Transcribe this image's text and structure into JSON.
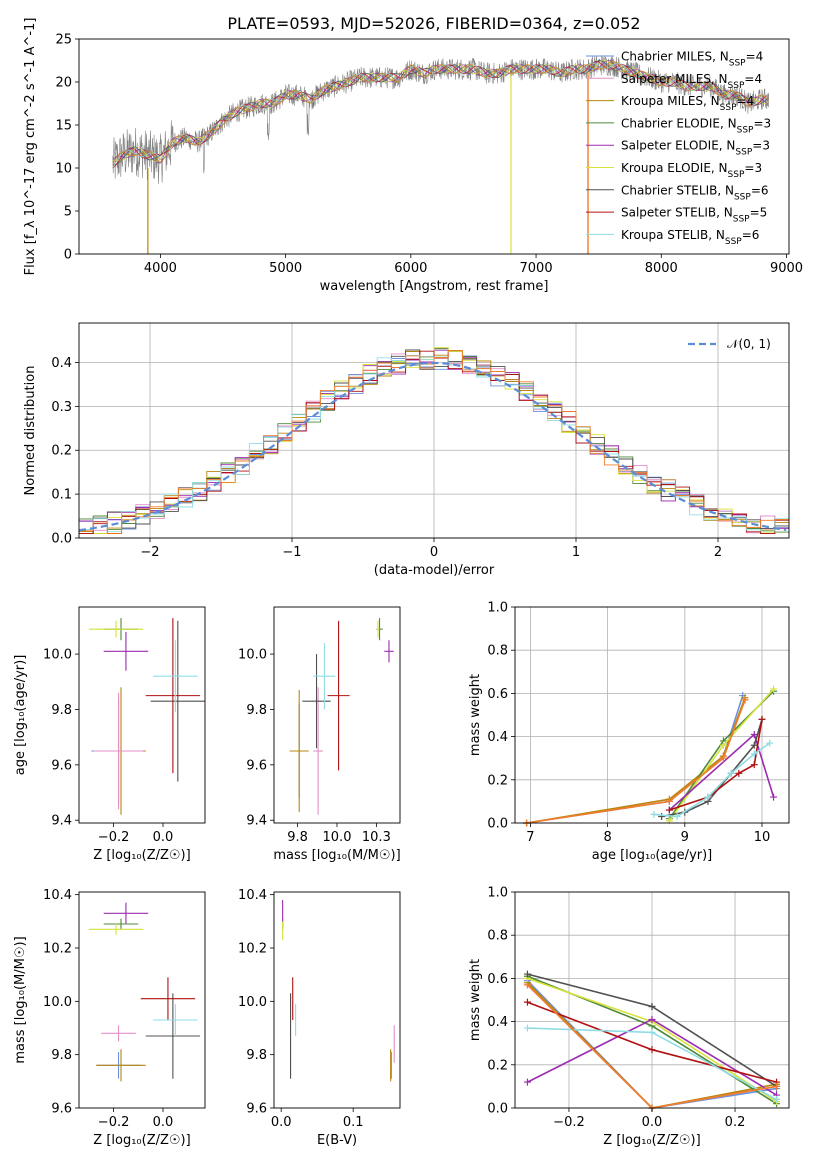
{
  "title": "PLATE=0593, MJD=52026, FIBERID=0364, z=0.052",
  "colors": {
    "Chabrier MILES": "#6a92dd",
    "Salpeter MILES": "#e58fc7",
    "Kroupa MILES": "#b8860b",
    "Chabrier ELODIE": "#4f8a3a",
    "Salpeter ELODIE": "#9b2cb1",
    "Kroupa ELODIE": "#d8e23a",
    "Chabrier STELIB": "#505050",
    "Salpeter STELIB": "#b01010",
    "Kroupa STELIB": "#8fdde3",
    "normal": "#5b8cd6",
    "orange": "#ef7d2d",
    "spectrum": "#808080"
  },
  "panels": {
    "spectrum": {
      "type": "line",
      "xlabel": "wavelength [Angstrom, rest frame]",
      "ylabel": "Flux [f_λ 10^-17 erg cm^-2 s^-1 A^-1]",
      "xlim": [
        3350,
        9020
      ],
      "ylim": [
        0,
        25
      ],
      "xticks": [
        4000,
        5000,
        6000,
        7000,
        8000,
        9000
      ],
      "yticks": [
        0,
        5,
        10,
        15,
        20,
        25
      ],
      "legend": [
        {
          "label": "Chabrier MILES, N",
          "sub": "SSP",
          "suffix": "=4",
          "series": "Chabrier MILES"
        },
        {
          "label": "Salpeter MILES, N",
          "sub": "SSP",
          "suffix": "=4",
          "series": "Salpeter MILES"
        },
        {
          "label": "Kroupa MILES, N",
          "sub": "SSP",
          "suffix": "=4",
          "series": "Kroupa MILES"
        },
        {
          "label": "Chabrier ELODIE, N",
          "sub": "SSP",
          "suffix": "=3",
          "series": "Chabrier ELODIE"
        },
        {
          "label": "Salpeter ELODIE, N",
          "sub": "SSP",
          "suffix": "=3",
          "series": "Salpeter ELODIE"
        },
        {
          "label": "Kroupa ELODIE, N",
          "sub": "SSP",
          "suffix": "=3",
          "series": "Kroupa ELODIE"
        },
        {
          "label": "Chabrier STELIB, N",
          "sub": "SSP",
          "suffix": "=6",
          "series": "Chabrier STELIB"
        },
        {
          "label": "Salpeter STELIB, N",
          "sub": "SSP",
          "suffix": "=5",
          "series": "Salpeter STELIB"
        },
        {
          "label": "Kroupa STELIB, N",
          "sub": "SSP",
          "suffix": "=6",
          "series": "Kroupa STELIB"
        }
      ],
      "continuum": [
        [
          3620,
          10.5
        ],
        [
          3700,
          11.5
        ],
        [
          3800,
          12
        ],
        [
          3900,
          11.5
        ],
        [
          4000,
          11
        ],
        [
          4100,
          13
        ],
        [
          4200,
          13.5
        ],
        [
          4300,
          13
        ],
        [
          4400,
          14
        ],
        [
          4500,
          15.5
        ],
        [
          4600,
          16.5
        ],
        [
          4700,
          17
        ],
        [
          4800,
          17.5
        ],
        [
          4900,
          17.5
        ],
        [
          5000,
          18.5
        ],
        [
          5100,
          18.5
        ],
        [
          5200,
          18
        ],
        [
          5300,
          19
        ],
        [
          5400,
          19.5
        ],
        [
          5500,
          20
        ],
        [
          5600,
          20.5
        ],
        [
          5700,
          20.5
        ],
        [
          5800,
          20.5
        ],
        [
          5900,
          20.5
        ],
        [
          6000,
          21.5
        ],
        [
          6100,
          21
        ],
        [
          6200,
          21.5
        ],
        [
          6300,
          21.5
        ],
        [
          6400,
          21.5
        ],
        [
          6500,
          21.5
        ],
        [
          6600,
          21
        ],
        [
          6700,
          21
        ],
        [
          6800,
          21.5
        ],
        [
          6900,
          21.5
        ],
        [
          7000,
          21.5
        ],
        [
          7100,
          21.5
        ],
        [
          7200,
          21
        ],
        [
          7300,
          21.5
        ],
        [
          7400,
          21.5
        ],
        [
          7500,
          22
        ],
        [
          7600,
          22
        ],
        [
          7700,
          21.5
        ],
        [
          7800,
          21
        ],
        [
          7900,
          20.5
        ],
        [
          8000,
          20
        ],
        [
          8100,
          20
        ],
        [
          8200,
          19.5
        ],
        [
          8300,
          19.5
        ],
        [
          8400,
          19.5
        ],
        [
          8500,
          18.5
        ],
        [
          8600,
          18.5
        ],
        [
          8700,
          17.5
        ],
        [
          8800,
          18
        ],
        [
          8860,
          18
        ]
      ]
    },
    "residuals": {
      "type": "histogram",
      "xlabel": "(data-model)/error",
      "ylabel": "Normed distribution",
      "xlim": [
        -2.5,
        2.5
      ],
      "ylim": [
        0,
        0.49
      ],
      "xticks": [
        -2,
        -1,
        0,
        1,
        2
      ],
      "yticks": [
        0.0,
        0.1,
        0.2,
        0.3,
        0.4
      ],
      "legend": "𝒩(0, 1)",
      "bin_width": 0.1
    },
    "age_vs_Z": {
      "type": "scatter",
      "xlabel": "Z [log₁₀(Z/Z☉)]",
      "ylabel": "age  [log₁₀(age/yr)]",
      "xlim": [
        -0.34,
        0.17
      ],
      "ylim": [
        9.39,
        10.17
      ],
      "xticks": [
        -0.2,
        0.0
      ],
      "yticks": [
        9.4,
        9.6,
        9.8,
        10.0
      ],
      "points": [
        {
          "series": "Chabrier MILES",
          "x": -0.18,
          "y": 9.65,
          "xerr": 0.11,
          "yerr": 0.19
        },
        {
          "series": "Kroupa MILES",
          "x": -0.17,
          "y": 9.65,
          "xerr": 0.1,
          "yerr": 0.23
        },
        {
          "series": "Salpeter MILES",
          "x": -0.18,
          "y": 9.65,
          "xerr": 0.1,
          "yerr": 0.21
        },
        {
          "series": "Chabrier ELODIE",
          "x": -0.17,
          "y": 10.09,
          "xerr": 0.07,
          "yerr": 0.04
        },
        {
          "series": "Kroupa ELODIE",
          "x": -0.19,
          "y": 10.09,
          "xerr": 0.11,
          "yerr": 0.03
        },
        {
          "series": "Salpeter ELODIE",
          "x": -0.15,
          "y": 10.01,
          "xerr": 0.09,
          "yerr": 0.07
        },
        {
          "series": "Chabrier STELIB",
          "x": 0.06,
          "y": 9.83,
          "xerr": 0.11,
          "yerr": 0.29
        },
        {
          "series": "Salpeter STELIB",
          "x": 0.04,
          "y": 9.85,
          "xerr": 0.11,
          "yerr": 0.28
        },
        {
          "series": "Kroupa STELIB",
          "x": 0.05,
          "y": 9.92,
          "xerr": 0.09,
          "yerr": 0.13
        }
      ]
    },
    "age_vs_mass": {
      "type": "scatter",
      "xlabel": "mass [log₁₀(M/M☉)]",
      "ylabel": "",
      "xlim": [
        9.6,
        10.4
      ],
      "ylim": [
        9.39,
        10.17
      ],
      "xticks": [
        9.75,
        10.0,
        10.25
      ],
      "yticks": [
        9.4,
        9.6,
        9.8,
        10.0
      ],
      "points": [
        {
          "series": "Chabrier MILES",
          "x": 9.76,
          "y": 9.65,
          "xerr": 0.06,
          "yerr": 0.17
        },
        {
          "series": "Kroupa MILES",
          "x": 9.76,
          "y": 9.65,
          "xerr": 0.06,
          "yerr": 0.22
        },
        {
          "series": "Salpeter MILES",
          "x": 9.88,
          "y": 9.65,
          "xerr": 0.03,
          "yerr": 0.23
        },
        {
          "series": "Chabrier ELODIE",
          "x": 10.27,
          "y": 10.09,
          "xerr": 0.02,
          "yerr": 0.04
        },
        {
          "series": "Kroupa ELODIE",
          "x": 10.26,
          "y": 10.09,
          "xerr": 0.01,
          "yerr": 0.03
        },
        {
          "series": "Salpeter ELODIE",
          "x": 10.33,
          "y": 10.01,
          "xerr": 0.03,
          "yerr": 0.04
        },
        {
          "series": "Chabrier STELIB",
          "x": 9.87,
          "y": 9.83,
          "xerr": 0.09,
          "yerr": 0.17
        },
        {
          "series": "Salpeter STELIB",
          "x": 10.01,
          "y": 9.85,
          "xerr": 0.07,
          "yerr": 0.27
        },
        {
          "series": "Kroupa STELIB",
          "x": 9.92,
          "y": 9.92,
          "xerr": 0.07,
          "yerr": 0.12
        }
      ]
    },
    "weight_vs_age": {
      "type": "line",
      "xlabel": "age  [log₁₀(age/yr)]",
      "ylabel": "mass weight",
      "xlim": [
        6.8,
        10.35
      ],
      "ylim": [
        0,
        1.0
      ],
      "xticks": [
        7,
        8,
        9,
        10
      ],
      "yticks": [
        0.0,
        0.2,
        0.4,
        0.6,
        0.8,
        1.0
      ],
      "series": [
        {
          "name": "Chabrier MILES",
          "x": [
            6.95,
            8.8,
            9.5,
            9.75
          ],
          "y": [
            0.0,
            0.1,
            0.31,
            0.59
          ]
        },
        {
          "name": "Salpeter MILES",
          "x": [
            6.95,
            8.8,
            9.5,
            9.78
          ],
          "y": [
            0.0,
            0.1,
            0.31,
            0.57
          ]
        },
        {
          "name": "Kroupa MILES",
          "x": [
            6.95,
            8.8,
            9.5,
            9.78
          ],
          "y": [
            0.0,
            0.11,
            0.31,
            0.58
          ]
        },
        {
          "name": "Chabrier ELODIE",
          "x": [
            8.8,
            9.5,
            10.15
          ],
          "y": [
            0.02,
            0.38,
            0.61
          ]
        },
        {
          "name": "Kroupa ELODIE",
          "x": [
            8.8,
            9.5,
            10.15
          ],
          "y": [
            0.01,
            0.36,
            0.62
          ]
        },
        {
          "name": "Salpeter ELODIE",
          "x": [
            8.8,
            9.9,
            10.15
          ],
          "y": [
            0.06,
            0.41,
            0.12
          ]
        },
        {
          "name": "Chabrier STELIB",
          "x": [
            8.7,
            9.0,
            9.3,
            9.6,
            9.9,
            10.0
          ],
          "y": [
            0.03,
            0.05,
            0.1,
            0.23,
            0.36,
            0.48
          ]
        },
        {
          "name": "Salpeter STELIB",
          "x": [
            8.8,
            9.3,
            9.7,
            9.9,
            10.0
          ],
          "y": [
            0.06,
            0.12,
            0.23,
            0.27,
            0.48
          ]
        },
        {
          "name": "Kroupa STELIB",
          "x": [
            8.6,
            8.9,
            9.3,
            9.6,
            9.9,
            10.1
          ],
          "y": [
            0.04,
            0.03,
            0.12,
            0.23,
            0.32,
            0.37
          ]
        }
      ],
      "orange_series": {
        "x": [
          6.95,
          8.8,
          9.5,
          9.78
        ],
        "y": [
          0.0,
          0.1,
          0.3,
          0.57
        ]
      }
    },
    "mass_vs_Z": {
      "type": "scatter",
      "xlabel": "Z [log₁₀(Z/Z☉)]",
      "ylabel": "mass [log₁₀(M/M☉)]",
      "xlim": [
        -0.34,
        0.17
      ],
      "ylim": [
        9.6,
        10.41
      ],
      "xticks": [
        -0.2,
        0.0
      ],
      "yticks": [
        9.6,
        9.8,
        10.0,
        10.2,
        10.4
      ],
      "points": [
        {
          "series": "Chabrier MILES",
          "x": -0.18,
          "y": 9.76,
          "xerr": 0.09,
          "yerr": 0.05
        },
        {
          "series": "Kroupa MILES",
          "x": -0.17,
          "y": 9.76,
          "xerr": 0.1,
          "yerr": 0.06
        },
        {
          "series": "Salpeter MILES",
          "x": -0.18,
          "y": 9.88,
          "xerr": 0.07,
          "yerr": 0.03
        },
        {
          "series": "Chabrier ELODIE",
          "x": -0.17,
          "y": 10.29,
          "xerr": 0.07,
          "yerr": 0.02
        },
        {
          "series": "Kroupa ELODIE",
          "x": -0.19,
          "y": 10.27,
          "xerr": 0.11,
          "yerr": 0.02
        },
        {
          "series": "Salpeter ELODIE",
          "x": -0.15,
          "y": 10.33,
          "xerr": 0.09,
          "yerr": 0.04
        },
        {
          "series": "Chabrier STELIB",
          "x": 0.04,
          "y": 9.87,
          "xerr": 0.11,
          "yerr": 0.16
        },
        {
          "series": "Salpeter STELIB",
          "x": 0.02,
          "y": 10.01,
          "xerr": 0.11,
          "yerr": 0.08
        },
        {
          "series": "Kroupa STELIB",
          "x": 0.05,
          "y": 9.93,
          "xerr": 0.09,
          "yerr": 0.06
        }
      ]
    },
    "mass_vs_ebv": {
      "type": "scatter",
      "xlabel": "E(B-V)",
      "ylabel": "",
      "xlim": [
        -0.01,
        0.165
      ],
      "ylim": [
        9.6,
        10.41
      ],
      "xticks": [
        0.0,
        0.1
      ],
      "yticks": [
        9.6,
        9.8,
        10.0,
        10.2,
        10.4
      ],
      "points": [
        {
          "series": "Chabrier MILES",
          "x": 0.153,
          "y": 9.76,
          "xerr": 0.0,
          "yerr": 0.05
        },
        {
          "series": "Kroupa MILES",
          "x": 0.152,
          "y": 9.76,
          "xerr": 0.0,
          "yerr": 0.06
        },
        {
          "series": "Salpeter MILES",
          "x": 0.157,
          "y": 9.84,
          "xerr": 0.0,
          "yerr": 0.07
        },
        {
          "series": "Chabrier ELODIE",
          "x": 0.002,
          "y": 10.29,
          "xerr": 0.0,
          "yerr": 0.02
        },
        {
          "series": "Kroupa ELODIE",
          "x": 0.002,
          "y": 10.27,
          "xerr": 0.0,
          "yerr": 0.04
        },
        {
          "series": "Salpeter ELODIE",
          "x": 0.002,
          "y": 10.34,
          "xerr": 0.0,
          "yerr": 0.04
        },
        {
          "series": "Chabrier STELIB",
          "x": 0.013,
          "y": 9.87,
          "xerr": 0.0,
          "yerr": 0.16
        },
        {
          "series": "Salpeter STELIB",
          "x": 0.016,
          "y": 10.01,
          "xerr": 0.0,
          "yerr": 0.08
        },
        {
          "series": "Kroupa STELIB",
          "x": 0.02,
          "y": 9.93,
          "xerr": 0.0,
          "yerr": 0.06
        }
      ]
    },
    "weight_vs_Z": {
      "type": "line",
      "xlabel": "Z [log₁₀(Z/Z☉)]",
      "ylabel": "mass weight",
      "xlim": [
        -0.33,
        0.33
      ],
      "ylim": [
        0,
        1.0
      ],
      "xticks": [
        -0.2,
        0.0,
        0.2
      ],
      "yticks": [
        0.0,
        0.2,
        0.4,
        0.6,
        0.8,
        1.0
      ],
      "series": [
        {
          "name": "Chabrier MILES",
          "x": [
            -0.3,
            0.0,
            0.3
          ],
          "y": [
            0.59,
            0.0,
            0.09
          ]
        },
        {
          "name": "Salpeter MILES",
          "x": [
            -0.3,
            0.0,
            0.3
          ],
          "y": [
            0.57,
            0.0,
            0.1
          ]
        },
        {
          "name": "Kroupa MILES",
          "x": [
            -0.3,
            0.0,
            0.3
          ],
          "y": [
            0.58,
            0.0,
            0.11
          ]
        },
        {
          "name": "Chabrier ELODIE",
          "x": [
            -0.3,
            0.0,
            0.3
          ],
          "y": [
            0.61,
            0.38,
            0.02
          ]
        },
        {
          "name": "Kroupa ELODIE",
          "x": [
            -0.3,
            0.0,
            0.3
          ],
          "y": [
            0.6,
            0.4,
            0.03
          ]
        },
        {
          "name": "Salpeter ELODIE",
          "x": [
            -0.3,
            0.0,
            0.3
          ],
          "y": [
            0.12,
            0.41,
            0.06
          ]
        },
        {
          "name": "Chabrier STELIB",
          "x": [
            -0.3,
            0.0,
            0.0,
            0.3
          ],
          "y": [
            0.62,
            0.47,
            0.47,
            0.1
          ]
        },
        {
          "name": "Salpeter STELIB",
          "x": [
            -0.3,
            0.0,
            0.3
          ],
          "y": [
            0.49,
            0.27,
            0.12
          ]
        },
        {
          "name": "Kroupa STELIB",
          "x": [
            -0.3,
            0.0,
            0.3
          ],
          "y": [
            0.37,
            0.35,
            0.04
          ]
        }
      ],
      "orange_series": {
        "x": [
          -0.3,
          0.0,
          0.3
        ],
        "y": [
          0.57,
          0.0,
          0.1
        ]
      }
    }
  }
}
